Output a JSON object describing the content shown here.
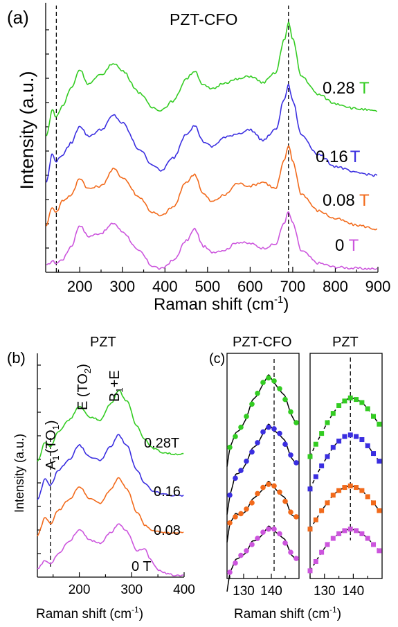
{
  "colors": {
    "green": "#33cc22",
    "blue": "#3a2ee0",
    "orange": "#f26a1b",
    "magenta": "#cc55dd",
    "axis": "#000000"
  },
  "chart_data": [
    {
      "panel": "(a)",
      "type": "line",
      "title": "PZT-CFO",
      "xlabel": "Raman shift",
      "xunit": "(cm",
      "xunit_sup": "-1",
      "xunit_close": ")",
      "ylabel": "Intensity (a.u.)",
      "xlim": [
        120,
        900
      ],
      "xticks": [
        "200",
        "300",
        "400",
        "500",
        "600",
        "700",
        "800",
        "900"
      ],
      "reference_lines_x": [
        145,
        690
      ],
      "series": [
        {
          "name": "0 T",
          "label_num": "0 ",
          "label_unit": "T",
          "color": "magenta",
          "x": [
            122,
            135,
            145,
            160,
            180,
            200,
            220,
            250,
            280,
            300,
            340,
            370,
            390,
            420,
            450,
            470,
            490,
            510,
            540,
            570,
            600,
            630,
            660,
            680,
            690,
            700,
            720,
            760,
            800,
            850,
            900
          ],
          "y": [
            0.1,
            0.17,
            0.14,
            0.2,
            0.4,
            0.72,
            0.55,
            0.6,
            0.75,
            0.62,
            0.32,
            0.1,
            0.05,
            0.18,
            0.48,
            0.66,
            0.4,
            0.31,
            0.34,
            0.46,
            0.44,
            0.37,
            0.43,
            0.76,
            0.92,
            0.75,
            0.33,
            0.14,
            0.08,
            0.06,
            0.05
          ]
        },
        {
          "name": "0.08 T",
          "label_num": "0.08 ",
          "label_unit": "T",
          "color": "orange",
          "x": [
            122,
            135,
            145,
            160,
            180,
            200,
            220,
            250,
            280,
            300,
            340,
            370,
            390,
            420,
            450,
            470,
            490,
            510,
            540,
            570,
            600,
            630,
            660,
            680,
            690,
            700,
            720,
            760,
            800,
            850,
            900
          ],
          "y": [
            0.72,
            1.0,
            0.92,
            1.1,
            1.18,
            1.44,
            1.28,
            1.32,
            1.58,
            1.45,
            1.15,
            0.92,
            0.86,
            1.0,
            1.38,
            1.5,
            1.2,
            1.08,
            1.18,
            1.36,
            1.32,
            1.38,
            1.28,
            1.7,
            1.94,
            1.7,
            1.2,
            0.94,
            0.82,
            0.72,
            0.66
          ]
        },
        {
          "name": "0.16 T",
          "label_num": "0.16",
          "label_unit": "T",
          "color": "blue",
          "x": [
            122,
            135,
            145,
            160,
            180,
            200,
            220,
            250,
            280,
            300,
            340,
            370,
            390,
            420,
            450,
            470,
            490,
            510,
            540,
            570,
            600,
            630,
            660,
            680,
            690,
            700,
            720,
            760,
            800,
            850,
            900
          ],
          "y": [
            1.38,
            1.8,
            1.7,
            1.8,
            1.98,
            2.24,
            2.08,
            2.18,
            2.4,
            2.28,
            1.88,
            1.65,
            1.55,
            1.75,
            2.12,
            2.24,
            2.0,
            1.92,
            2.06,
            2.12,
            2.18,
            2.02,
            2.18,
            2.64,
            2.86,
            2.62,
            2.1,
            1.8,
            1.62,
            1.52,
            1.48
          ]
        },
        {
          "name": "0.28 T",
          "label_num": "0.28 ",
          "label_unit": "T",
          "color": "green",
          "x": [
            122,
            135,
            145,
            160,
            180,
            200,
            220,
            250,
            280,
            300,
            340,
            370,
            390,
            420,
            450,
            470,
            490,
            510,
            540,
            570,
            600,
            630,
            660,
            680,
            690,
            700,
            720,
            760,
            800,
            850,
            900
          ],
          "y": [
            2.08,
            2.48,
            2.38,
            2.55,
            2.82,
            3.1,
            2.88,
            3.02,
            3.2,
            3.08,
            2.75,
            2.52,
            2.48,
            2.62,
            2.96,
            3.08,
            2.86,
            2.8,
            2.9,
            2.95,
            3.0,
            2.9,
            3.05,
            3.55,
            3.82,
            3.56,
            3.0,
            2.72,
            2.58,
            2.5,
            2.46
          ]
        }
      ],
      "ylim": [
        0,
        4.1
      ]
    },
    {
      "panel": "(b)",
      "type": "line",
      "title": "PZT",
      "xlabel": "Raman shift",
      "xunit": "(cm",
      "xunit_sup": "-1",
      "xunit_close": ")",
      "ylabel": "Intensity (a.u.)",
      "xlim": [
        120,
        400
      ],
      "xticks": [
        "200",
        "300",
        "400"
      ],
      "reference_lines_x": [
        145
      ],
      "mode_labels": [
        {
          "main": "A",
          "sub": "1",
          "rest": "(TO",
          "sub2": "1",
          "close": ")"
        },
        {
          "main": "E (TO",
          "sub": "2",
          "rest": ")",
          "sub2": "",
          "close": ""
        },
        {
          "main": "B",
          "sub": "1",
          "rest": "+E",
          "sub2": "",
          "close": ""
        }
      ],
      "series": [
        {
          "name": "0 T",
          "label": "0 T",
          "color": "magenta",
          "x": [
            120,
            135,
            145,
            160,
            180,
            200,
            220,
            240,
            260,
            275,
            290,
            310,
            325,
            335,
            350,
            370,
            385,
            400
          ],
          "y": [
            0.12,
            0.22,
            0.18,
            0.32,
            0.48,
            0.64,
            0.5,
            0.46,
            0.6,
            0.72,
            0.62,
            0.36,
            0.38,
            0.24,
            0.1,
            0.04,
            0.02,
            0.02
          ]
        },
        {
          "name": "0.08",
          "label": "0.08",
          "color": "orange",
          "x": [
            120,
            135,
            145,
            160,
            180,
            200,
            220,
            240,
            260,
            275,
            290,
            310,
            325,
            340,
            360,
            380,
            400
          ],
          "y": [
            0.56,
            0.8,
            0.72,
            0.9,
            1.04,
            1.22,
            1.06,
            1.0,
            1.18,
            1.34,
            1.2,
            0.88,
            0.7,
            0.62,
            0.6,
            0.6,
            0.6
          ]
        },
        {
          "name": "0.16",
          "label": "0.16",
          "color": "blue",
          "x": [
            120,
            135,
            145,
            160,
            180,
            200,
            220,
            240,
            260,
            275,
            290,
            310,
            325,
            340,
            360,
            380,
            400
          ],
          "y": [
            1.04,
            1.32,
            1.24,
            1.44,
            1.58,
            1.78,
            1.62,
            1.58,
            1.76,
            1.92,
            1.78,
            1.44,
            1.26,
            1.16,
            1.12,
            1.1,
            1.1
          ]
        },
        {
          "name": "0.28T",
          "label": "0.28T",
          "color": "green",
          "x": [
            120,
            135,
            145,
            160,
            180,
            200,
            220,
            240,
            260,
            275,
            290,
            310,
            325,
            340,
            360,
            380,
            400
          ],
          "y": [
            1.56,
            1.82,
            1.76,
            1.96,
            2.12,
            2.3,
            2.16,
            2.12,
            2.34,
            2.52,
            2.38,
            2.04,
            1.86,
            1.74,
            1.68,
            1.66,
            1.66
          ]
        }
      ],
      "ylim": [
        0,
        3.0
      ]
    },
    {
      "panel": "(c)",
      "type": "scatter",
      "title": "PZT-CFO",
      "xlabel": "Raman shift",
      "xunit": "(cm",
      "xunit_sup": "-1",
      "xunit_close": ")",
      "xlim": [
        124,
        150
      ],
      "xticks": [
        "130",
        "140"
      ],
      "reference_lines_x": [
        141
      ],
      "series": [
        {
          "name": "0 T",
          "color": "magenta",
          "x": [
            125,
            127,
            129,
            131,
            133,
            135,
            137,
            139,
            141,
            143,
            145,
            147,
            149
          ],
          "y": [
            0.08,
            0.2,
            0.3,
            0.36,
            0.44,
            0.52,
            0.6,
            0.64,
            0.64,
            0.58,
            0.46,
            0.34,
            0.26
          ]
        },
        {
          "name": "0.08 T",
          "color": "orange",
          "x": [
            125,
            127,
            129,
            131,
            133,
            135,
            137,
            139,
            141,
            143,
            145,
            147,
            149
          ],
          "y": [
            0.72,
            0.8,
            0.84,
            0.9,
            0.98,
            1.1,
            1.18,
            1.22,
            1.2,
            1.12,
            1.0,
            0.86,
            0.8
          ]
        },
        {
          "name": "0.16 T",
          "color": "blue",
          "x": [
            125,
            127,
            129,
            131,
            133,
            135,
            137,
            139,
            141,
            143,
            145,
            147,
            149
          ],
          "y": [
            1.08,
            1.3,
            1.4,
            1.52,
            1.64,
            1.76,
            1.9,
            1.96,
            1.94,
            1.88,
            1.74,
            1.6,
            1.5
          ]
        },
        {
          "name": "0.28 T",
          "color": "green",
          "x": [
            125,
            127,
            129,
            131,
            133,
            135,
            137,
            139,
            141,
            143,
            145,
            147,
            149
          ],
          "y": [
            1.7,
            1.84,
            1.96,
            2.1,
            2.26,
            2.4,
            2.54,
            2.6,
            2.56,
            2.46,
            2.32,
            2.16,
            2.02
          ]
        }
      ],
      "ylim": [
        0,
        2.9
      ]
    },
    {
      "panel": "(c) right",
      "type": "scatter",
      "title": "PZT",
      "xlabel": "",
      "xlim": [
        125,
        150
      ],
      "xticks": [
        "130",
        "140"
      ],
      "reference_lines_x": [
        139
      ],
      "series": [
        {
          "name": "0 T",
          "color": "magenta",
          "x": [
            125,
            127,
            129,
            131,
            133,
            135,
            137,
            139,
            141,
            143,
            145,
            147,
            149
          ],
          "y": [
            0.1,
            0.22,
            0.34,
            0.44,
            0.52,
            0.58,
            0.62,
            0.64,
            0.62,
            0.58,
            0.52,
            0.44,
            0.36
          ]
        },
        {
          "name": "0.08 T",
          "color": "orange",
          "x": [
            125,
            127,
            129,
            131,
            133,
            135,
            137,
            139,
            141,
            143,
            145,
            147,
            149
          ],
          "y": [
            0.64,
            0.76,
            0.88,
            0.98,
            1.08,
            1.14,
            1.18,
            1.2,
            1.18,
            1.14,
            1.06,
            0.98,
            0.88
          ]
        },
        {
          "name": "0.16 T",
          "color": "blue",
          "x": [
            125,
            127,
            129,
            131,
            133,
            135,
            137,
            139,
            141,
            143,
            145,
            147,
            149
          ],
          "y": [
            1.16,
            1.32,
            1.46,
            1.58,
            1.7,
            1.78,
            1.84,
            1.86,
            1.84,
            1.8,
            1.72,
            1.62,
            1.52
          ]
        },
        {
          "name": "0.28 T",
          "color": "green",
          "x": [
            125,
            127,
            129,
            131,
            133,
            135,
            137,
            139,
            141,
            143,
            145,
            147,
            149
          ],
          "y": [
            1.58,
            1.74,
            1.88,
            2.02,
            2.14,
            2.24,
            2.3,
            2.34,
            2.32,
            2.28,
            2.2,
            2.1,
            2.0
          ]
        }
      ],
      "ylim": [
        0,
        2.9
      ]
    }
  ]
}
